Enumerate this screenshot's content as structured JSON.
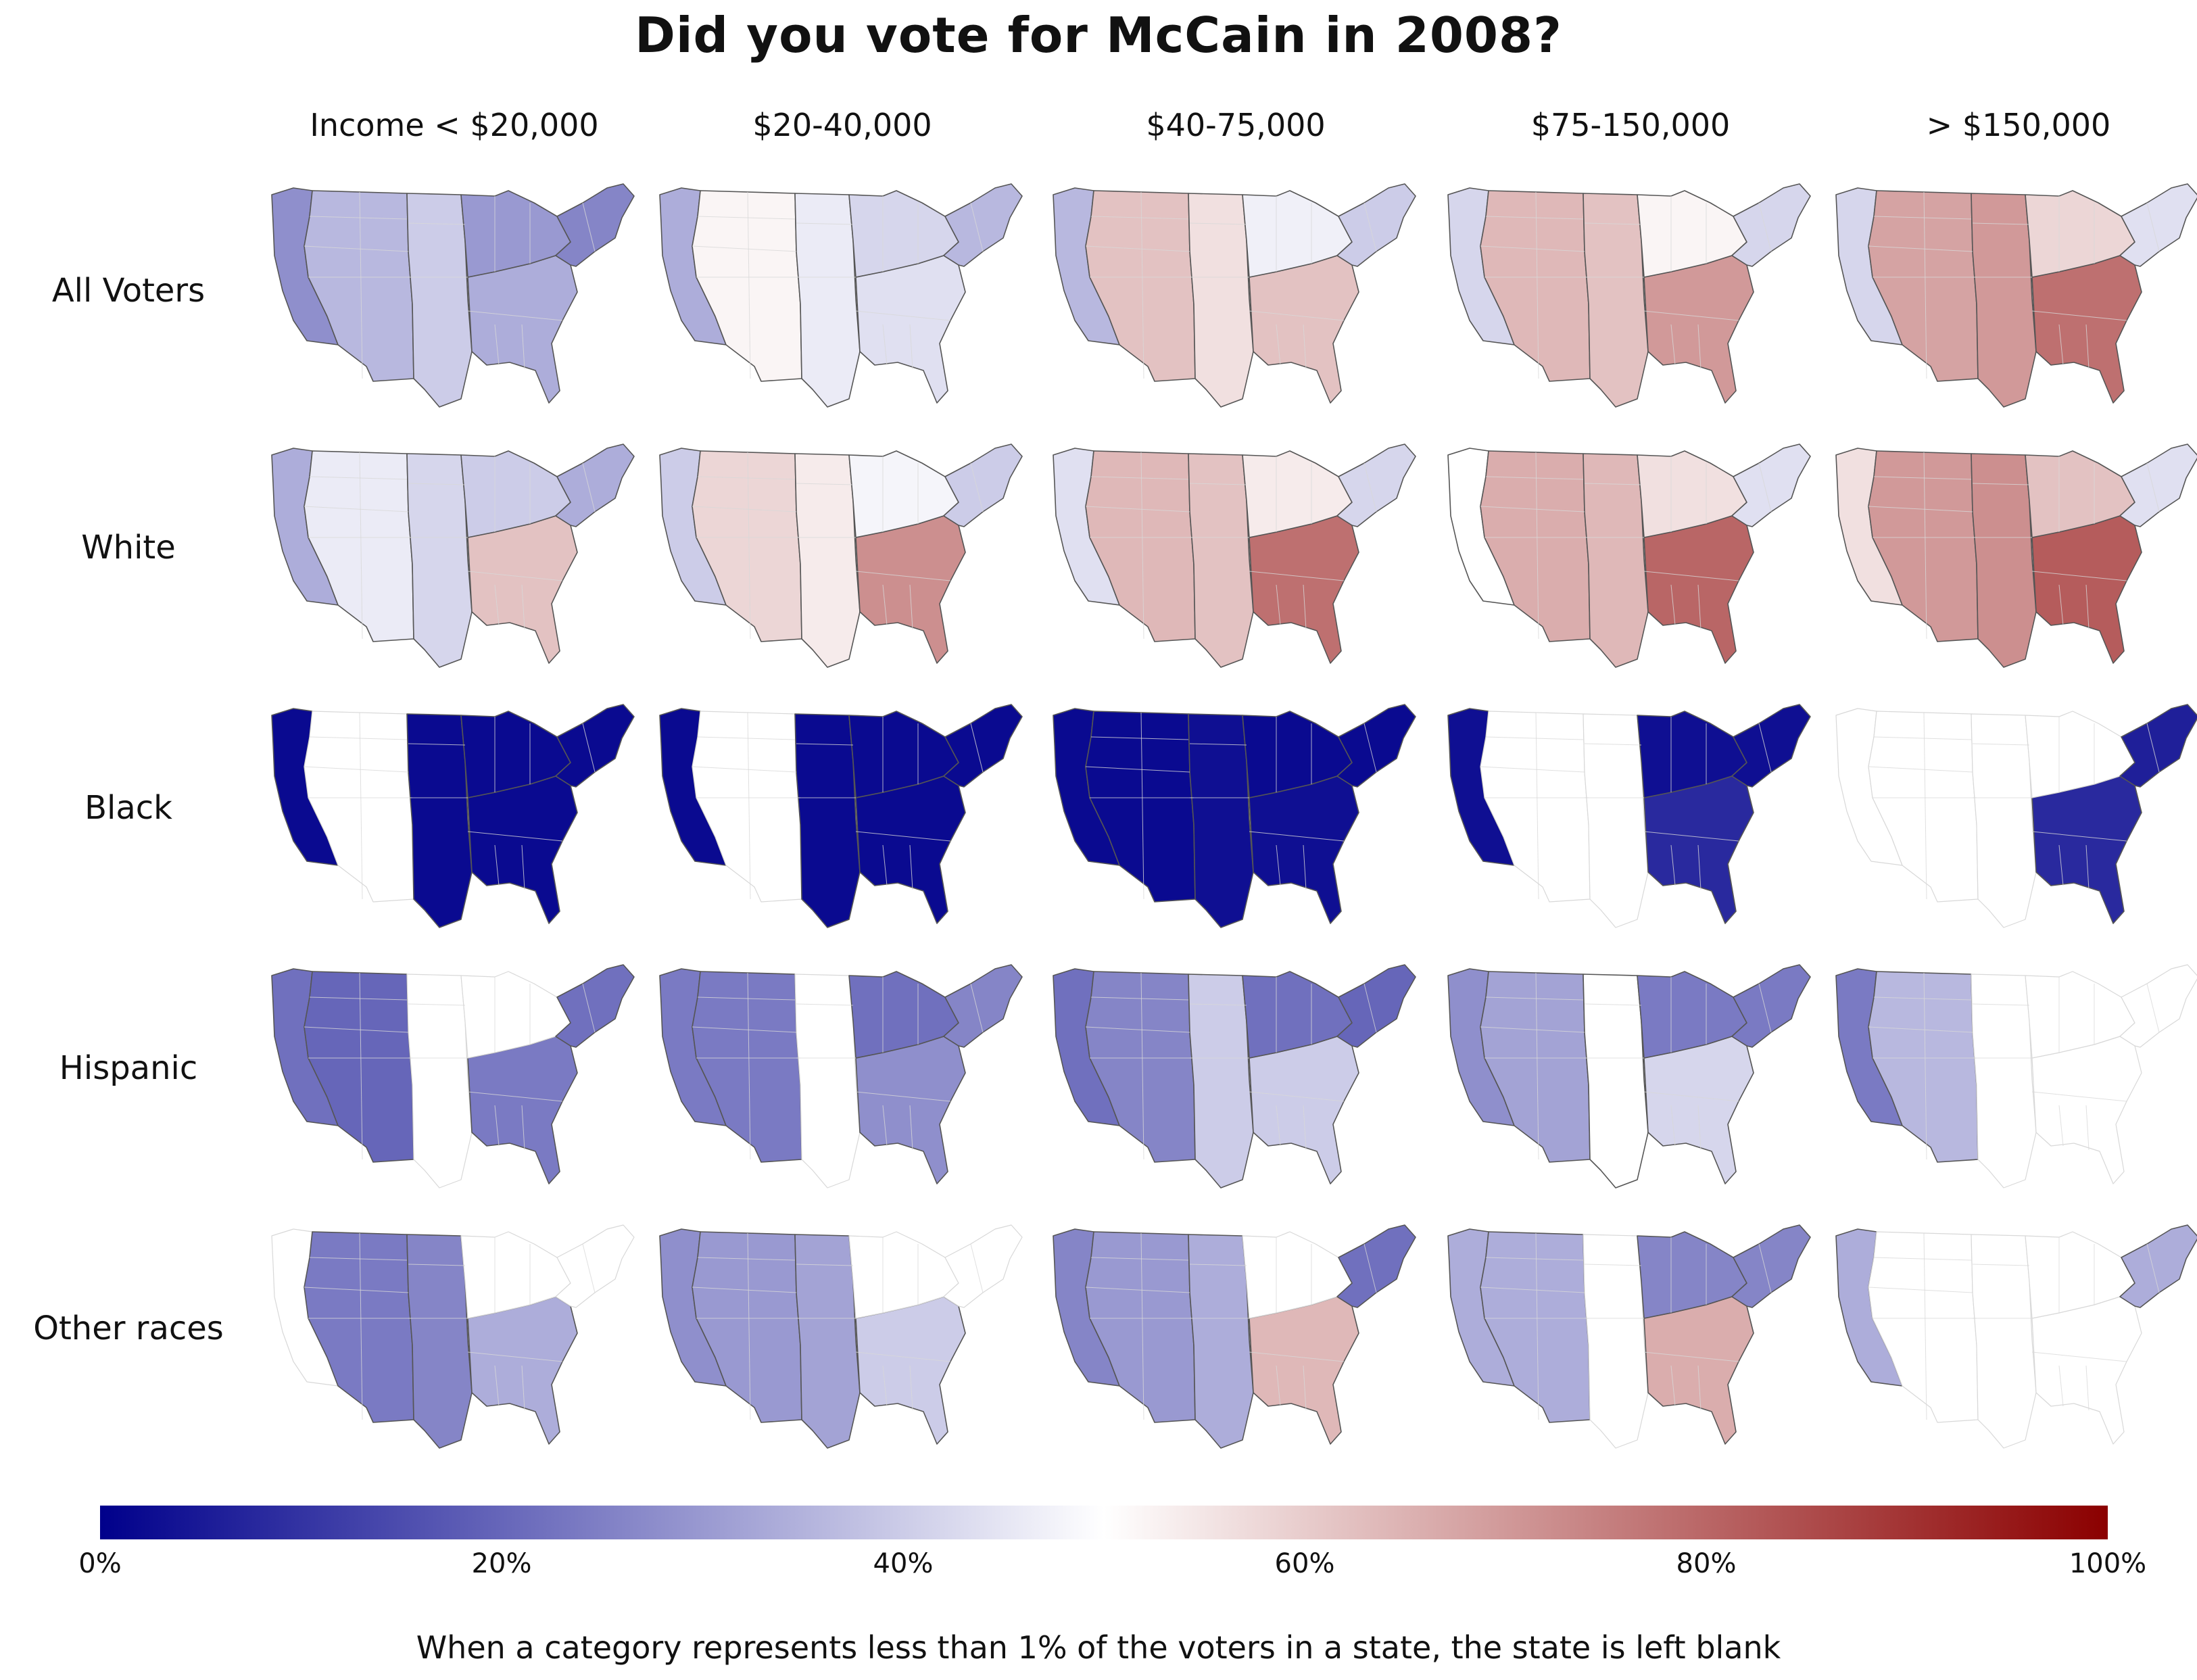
{
  "title": "Did you vote for McCain in 2008?",
  "footnote": "When a category represents less than 1% of the voters in a state, the state is left blank",
  "colors": {
    "low": "#00008b",
    "mid": "#ffffff",
    "high": "#8b0000",
    "blank": "#ffffff",
    "faint_outline": "#d8d8d8",
    "outline": "#555555"
  },
  "chart_data": {
    "type": "choropleth-grid",
    "title": "Did you vote for McCain in 2008?",
    "color_scale": {
      "min_label": "0%",
      "max_label": "100%",
      "ticks": [
        "0%",
        "20%",
        "40%",
        "60%",
        "80%",
        "100%"
      ],
      "tick_values": [
        0,
        20,
        40,
        60,
        80,
        100
      ]
    },
    "columns": [
      "Income < $20,000",
      "$20-40,000",
      "$40-75,000",
      "$75-150,000",
      "> $150,000"
    ],
    "rows": [
      "All Voters",
      "White",
      "Black",
      "Hispanic",
      "Other races"
    ],
    "blank_rule": "When a category represents less than 1% of the voters in a state, the state is left blank",
    "regions": [
      "Pacific",
      "Mountain",
      "Plains",
      "South",
      "Midwest",
      "Northeast"
    ],
    "cells": [
      {
        "row": "All Voters",
        "column": "Income < $20,000",
        "values": {
          "Pacific": 28,
          "Mountain": 36,
          "Plains": 40,
          "South": 34,
          "Midwest": 30,
          "Northeast": 26
        }
      },
      {
        "row": "All Voters",
        "column": "$20-40,000",
        "values": {
          "Pacific": 34,
          "Mountain": 52,
          "Plains": 46,
          "South": 44,
          "Midwest": 42,
          "Northeast": 36
        }
      },
      {
        "row": "All Voters",
        "column": "$40-75,000",
        "values": {
          "Pacific": 36,
          "Mountain": 62,
          "Plains": 56,
          "South": 62,
          "Midwest": 47,
          "Northeast": 40
        }
      },
      {
        "row": "All Voters",
        "column": "$75-150,000",
        "values": {
          "Pacific": 42,
          "Mountain": 64,
          "Plains": 62,
          "South": 70,
          "Midwest": 52,
          "Northeast": 42
        }
      },
      {
        "row": "All Voters",
        "column": "> $150,000",
        "values": {
          "Pacific": 42,
          "Mountain": 68,
          "Plains": 70,
          "South": 78,
          "Midwest": 58,
          "Northeast": 44
        }
      },
      {
        "row": "White",
        "column": "Income < $20,000",
        "values": {
          "Pacific": 34,
          "Mountain": 46,
          "Plains": 42,
          "South": 62,
          "Midwest": 40,
          "Northeast": 34
        }
      },
      {
        "row": "White",
        "column": "$20-40,000",
        "values": {
          "Pacific": 40,
          "Mountain": 58,
          "Plains": 54,
          "South": 72,
          "Midwest": 48,
          "Northeast": 40
        }
      },
      {
        "row": "White",
        "column": "$40-75,000",
        "values": {
          "Pacific": 44,
          "Mountain": 64,
          "Plains": 62,
          "South": 78,
          "Midwest": 54,
          "Northeast": 42
        }
      },
      {
        "row": "White",
        "column": "$75-150,000",
        "values": {
          "Pacific": 50,
          "Mountain": 66,
          "Plains": 64,
          "South": 80,
          "Midwest": 56,
          "Northeast": 44
        }
      },
      {
        "row": "White",
        "column": "> $150,000",
        "values": {
          "Pacific": 56,
          "Mountain": 70,
          "Plains": 72,
          "South": 82,
          "Midwest": 62,
          "Northeast": 44
        }
      },
      {
        "row": "Black",
        "column": "Income < $20,000",
        "values": {
          "Pacific": 2,
          "Mountain": null,
          "Plains": 2,
          "South": 2,
          "Midwest": 2,
          "Northeast": 2
        }
      },
      {
        "row": "Black",
        "column": "$20-40,000",
        "values": {
          "Pacific": 2,
          "Mountain": null,
          "Plains": 2,
          "South": 2,
          "Midwest": 2,
          "Northeast": 2
        }
      },
      {
        "row": "Black",
        "column": "$40-75,000",
        "values": {
          "Pacific": 2,
          "Mountain": 2,
          "Plains": 3,
          "South": 3,
          "Midwest": 2,
          "Northeast": 2
        }
      },
      {
        "row": "Black",
        "column": "$75-150,000",
        "values": {
          "Pacific": 3,
          "Mountain": null,
          "Plains": null,
          "South": 8,
          "Midwest": 3,
          "Northeast": 3
        }
      },
      {
        "row": "Black",
        "column": "> $150,000",
        "values": {
          "Pacific": null,
          "Mountain": null,
          "Plains": null,
          "South": 8,
          "Midwest": null,
          "Northeast": 6
        }
      },
      {
        "row": "Hispanic",
        "column": "Income < $20,000",
        "values": {
          "Pacific": 22,
          "Mountain": 20,
          "Plains": null,
          "South": 24,
          "Midwest": null,
          "Northeast": 22
        }
      },
      {
        "row": "Hispanic",
        "column": "$20-40,000",
        "values": {
          "Pacific": 24,
          "Mountain": 24,
          "Plains": null,
          "South": 28,
          "Midwest": 22,
          "Northeast": 26
        }
      },
      {
        "row": "Hispanic",
        "column": "$40-75,000",
        "values": {
          "Pacific": 22,
          "Mountain": 26,
          "Plains": 40,
          "South": 40,
          "Midwest": 22,
          "Northeast": 20
        }
      },
      {
        "row": "Hispanic",
        "column": "$75-150,000",
        "values": {
          "Pacific": 28,
          "Mountain": 32,
          "Plains": 50,
          "South": 42,
          "Midwest": 24,
          "Northeast": 24
        }
      },
      {
        "row": "Hispanic",
        "column": "> $150,000",
        "values": {
          "Pacific": 24,
          "Mountain": 36,
          "Plains": null,
          "South": null,
          "Midwest": null,
          "Northeast": null
        }
      },
      {
        "row": "Other races",
        "column": "Income < $20,000",
        "values": {
          "Pacific": null,
          "Mountain": 24,
          "Plains": 26,
          "South": 34,
          "Midwest": null,
          "Northeast": null
        }
      },
      {
        "row": "Other races",
        "column": "$20-40,000",
        "values": {
          "Pacific": 28,
          "Mountain": 30,
          "Plains": 32,
          "South": 40,
          "Midwest": null,
          "Northeast": null
        }
      },
      {
        "row": "Other races",
        "column": "$40-75,000",
        "values": {
          "Pacific": 26,
          "Mountain": 30,
          "Plains": 34,
          "South": 64,
          "Midwest": null,
          "Northeast": 22
        }
      },
      {
        "row": "Other races",
        "column": "$75-150,000",
        "values": {
          "Pacific": 34,
          "Mountain": 34,
          "Plains": null,
          "South": 66,
          "Midwest": 26,
          "Northeast": 26
        }
      },
      {
        "row": "Other races",
        "column": "> $150,000",
        "values": {
          "Pacific": 34,
          "Mountain": null,
          "Plains": null,
          "South": null,
          "Midwest": null,
          "Northeast": 34
        }
      }
    ]
  }
}
